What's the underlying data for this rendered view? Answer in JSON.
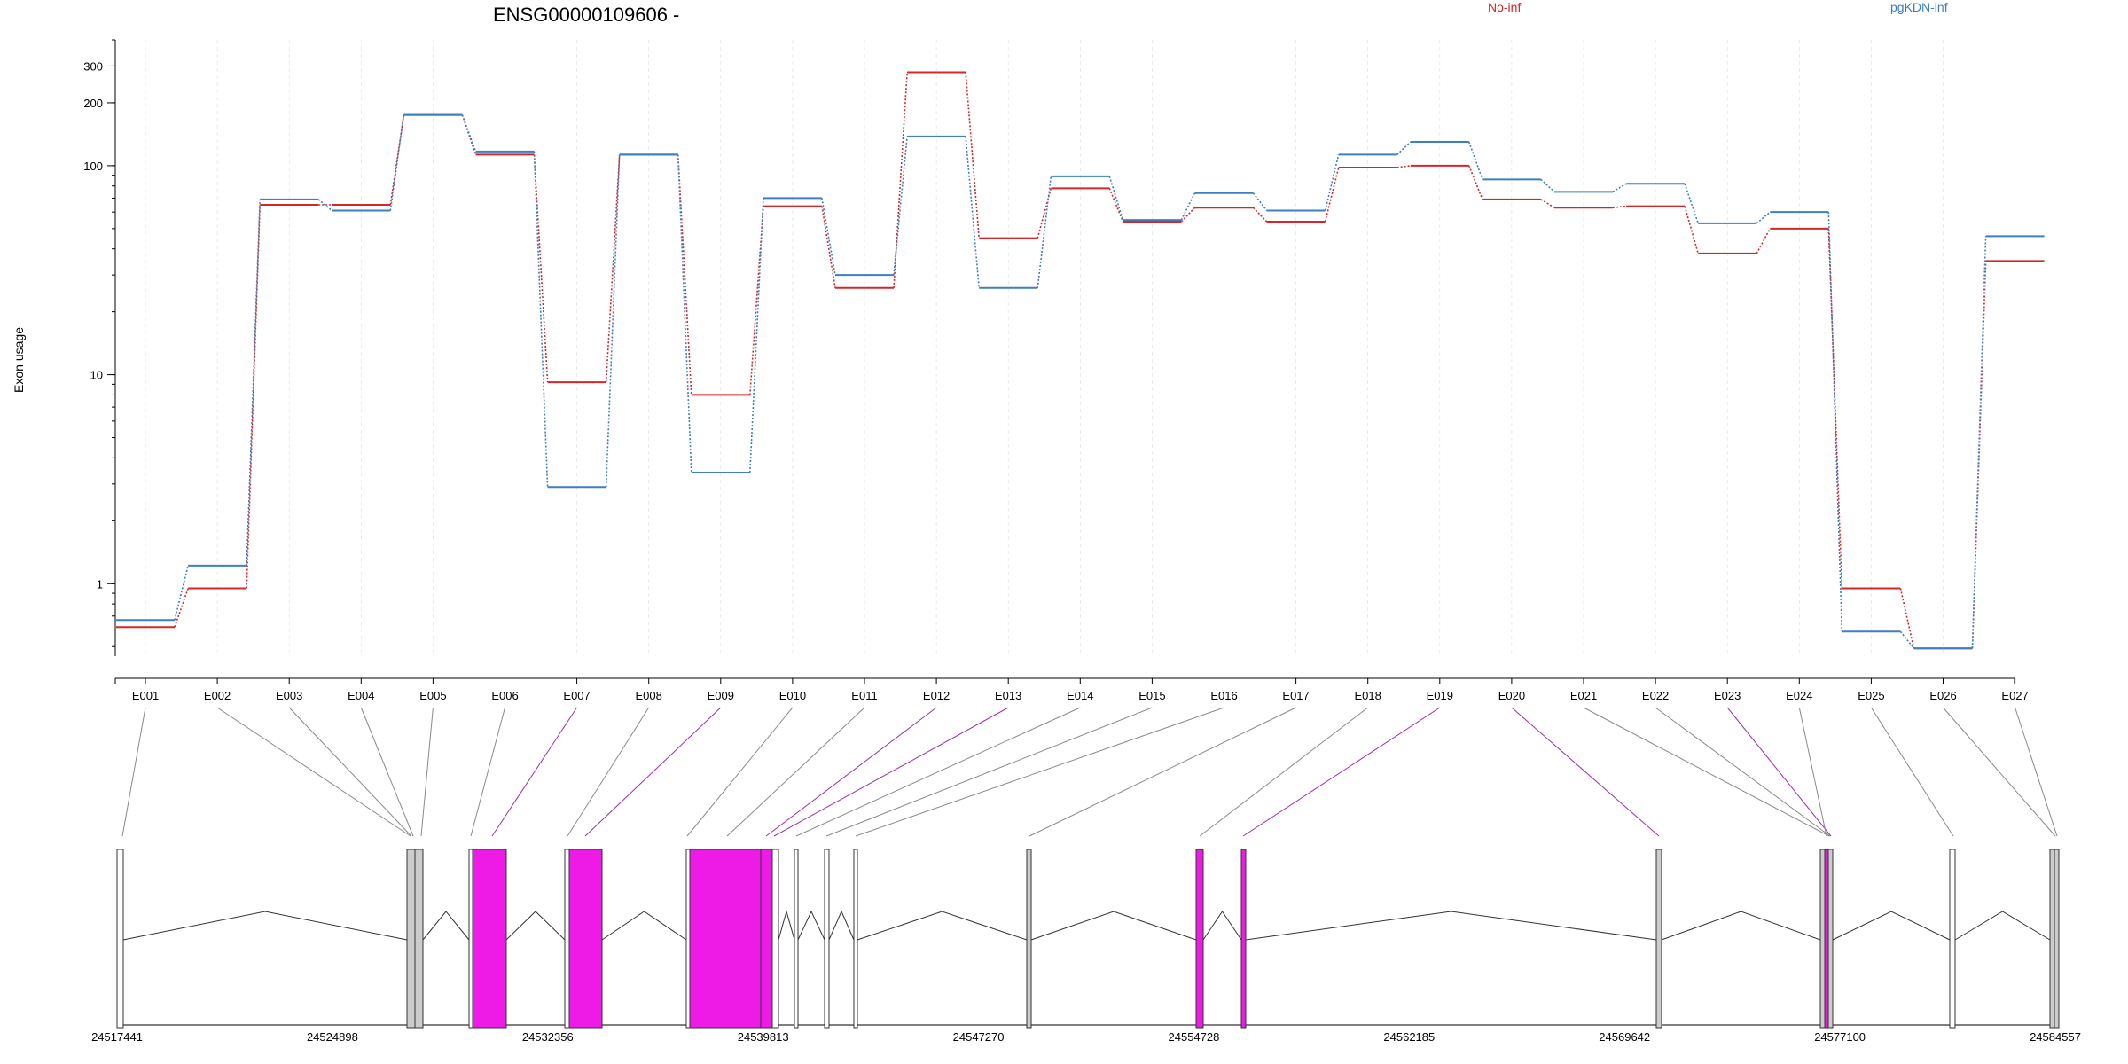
{
  "chart_data": {
    "type": "line",
    "title": "ENSG00000109606 -",
    "ylabel": "Exon usage",
    "yscale": "log",
    "ylim": [
      0.45,
      400
    ],
    "yticks": [
      1,
      10,
      100,
      200,
      300
    ],
    "ytick_labels": [
      "1",
      "10",
      "100",
      "200",
      "300"
    ],
    "grid": "vertical dashed",
    "legend_placement": "top",
    "categories": [
      "E001",
      "E002",
      "E003",
      "E004",
      "E005",
      "E006",
      "E007",
      "E008",
      "E009",
      "E010",
      "E011",
      "E012",
      "E013",
      "E014",
      "E015",
      "E016",
      "E017",
      "E018",
      "E019",
      "E020",
      "E021",
      "E022",
      "E023",
      "E024",
      "E025",
      "E026",
      "E027"
    ],
    "series": [
      {
        "name": "No-inf",
        "color": "#d62728",
        "values": [
          0.62,
          0.95,
          65,
          65,
          175,
          113,
          9.2,
          113,
          8.0,
          64,
          26,
          280,
          45,
          78,
          54,
          63,
          54,
          98,
          100,
          69,
          63,
          64,
          38,
          50,
          0.95,
          0.49,
          35
        ]
      },
      {
        "name": "pgKDN-inf",
        "color": "#3d7fbf",
        "values": [
          0.67,
          1.22,
          69,
          61,
          175,
          117,
          2.9,
          113,
          3.4,
          70,
          30,
          138,
          26,
          89,
          55,
          74,
          61,
          113,
          130,
          86,
          75,
          82,
          53,
          60,
          0.59,
          0.49,
          46
        ]
      }
    ],
    "gene_model": {
      "coordinate_ticks": [
        "24517441",
        "24524898",
        "24532356",
        "24539813",
        "24547270",
        "24554728",
        "24562185",
        "24569642",
        "24577100",
        "24584557"
      ],
      "highlight_color": "#ee1be6",
      "exon_color": "#cccccc",
      "highlighted_exons": [
        "E007",
        "E009",
        "E012",
        "E013",
        "E019",
        "E020",
        "E023"
      ]
    }
  }
}
